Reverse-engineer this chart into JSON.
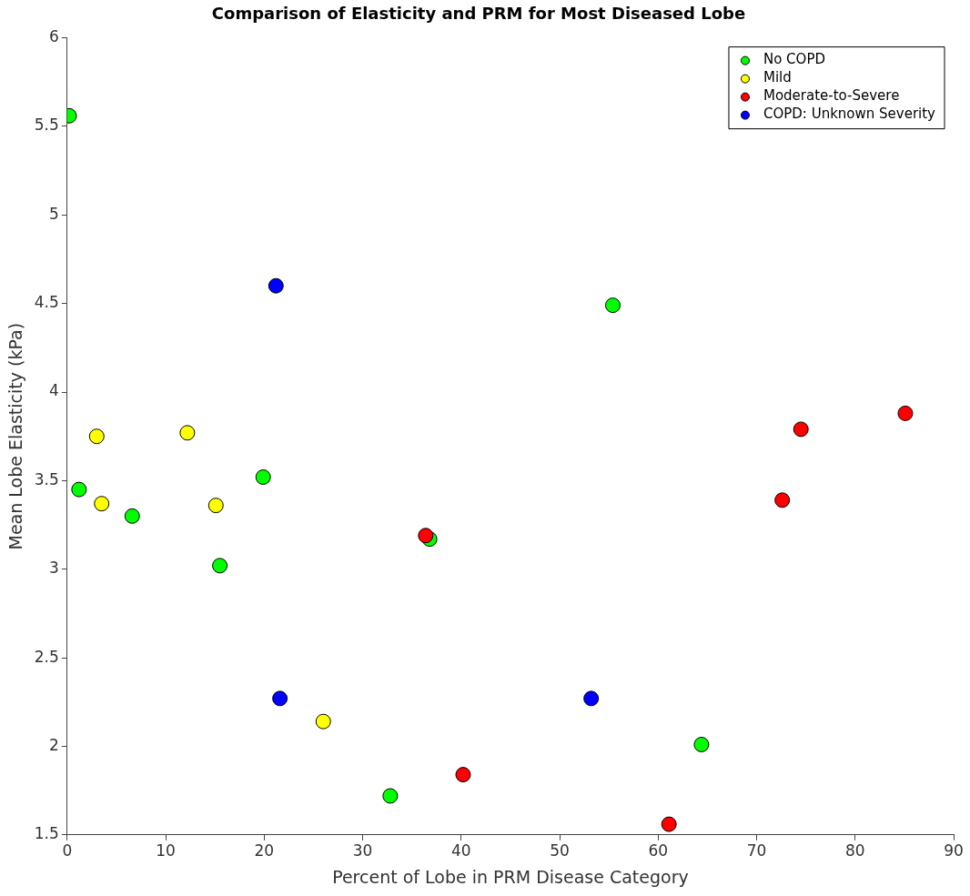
{
  "chart_data": {
    "type": "scatter",
    "title": "Comparison of Elasticity and PRM for Most Diseased Lobe",
    "xlabel": "Percent of Lobe in PRM Disease Category",
    "ylabel": "Mean Lobe Elasticity (kPa)",
    "xlim": [
      0,
      90
    ],
    "xticks": [
      0,
      10,
      20,
      30,
      40,
      50,
      60,
      70,
      80,
      90
    ],
    "ylim": [
      1.5,
      6
    ],
    "yticks": [
      1.5,
      2,
      2.5,
      3,
      3.5,
      4,
      4.5,
      5,
      5.5,
      6
    ],
    "grid": false,
    "legend": "top right",
    "marker": "circle",
    "series": [
      {
        "name": "No COPD",
        "color": "#00ff00",
        "x": [
          0.2,
          1.2,
          6.6,
          15.5,
          19.9,
          36.8,
          32.8,
          55.4,
          64.4
        ],
        "values": [
          5.56,
          3.45,
          3.3,
          3.02,
          3.52,
          3.17,
          1.72,
          4.49,
          2.01
        ]
      },
      {
        "name": "Mild",
        "color": "#ffff00",
        "x": [
          3,
          3.5,
          12.2,
          15.1,
          26
        ],
        "values": [
          3.75,
          3.37,
          3.77,
          3.36,
          2.14
        ]
      },
      {
        "name": "Moderate-to-Severe",
        "color": "#ff0000",
        "x": [
          36.4,
          40.2,
          61.1,
          72.6,
          74.5,
          85.1
        ],
        "values": [
          3.19,
          1.84,
          1.56,
          3.39,
          3.79,
          3.88
        ]
      },
      {
        "name": "COPD: Unknown Severity",
        "color": "#0000ff",
        "x": [
          21.2,
          21.6,
          53.2
        ],
        "values": [
          4.6,
          2.27,
          2.27
        ]
      }
    ]
  }
}
